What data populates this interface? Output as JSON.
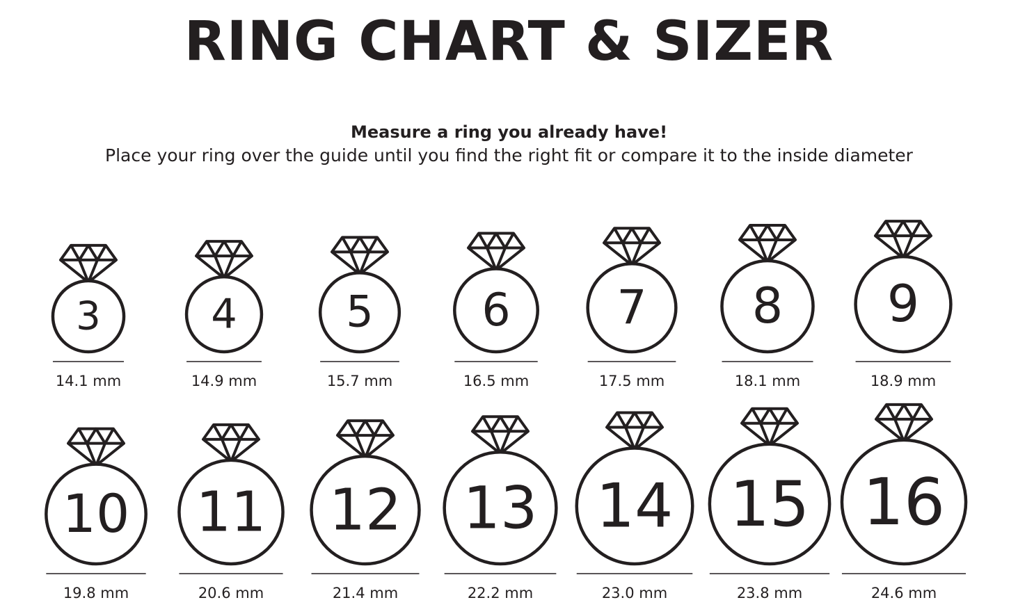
{
  "title": "RING CHART & SIZER",
  "subtitle": "Measure a ring you already have!",
  "instructions": "Place your ring over the guide until you find the right fit or compare it to the inside diameter",
  "icon": "diamond-ring-icon",
  "rings": [
    {
      "size": "3",
      "diameter": "14.1 mm",
      "mm": 14.1
    },
    {
      "size": "4",
      "diameter": "14.9 mm",
      "mm": 14.9
    },
    {
      "size": "5",
      "diameter": "15.7 mm",
      "mm": 15.7
    },
    {
      "size": "6",
      "diameter": "16.5 mm",
      "mm": 16.5
    },
    {
      "size": "7",
      "diameter": "17.5 mm",
      "mm": 17.5
    },
    {
      "size": "8",
      "diameter": "18.1 mm",
      "mm": 18.1
    },
    {
      "size": "9",
      "diameter": "18.9 mm",
      "mm": 18.9
    },
    {
      "size": "10",
      "diameter": "19.8 mm",
      "mm": 19.8
    },
    {
      "size": "11",
      "diameter": "20.6 mm",
      "mm": 20.6
    },
    {
      "size": "12",
      "diameter": "21.4 mm",
      "mm": 21.4
    },
    {
      "size": "13",
      "diameter": "22.2 mm",
      "mm": 22.2
    },
    {
      "size": "14",
      "diameter": "23.0 mm",
      "mm": 23.0
    },
    {
      "size": "15",
      "diameter": "23.8 mm",
      "mm": 23.8
    },
    {
      "size": "16",
      "diameter": "24.6 mm",
      "mm": 24.6
    }
  ]
}
